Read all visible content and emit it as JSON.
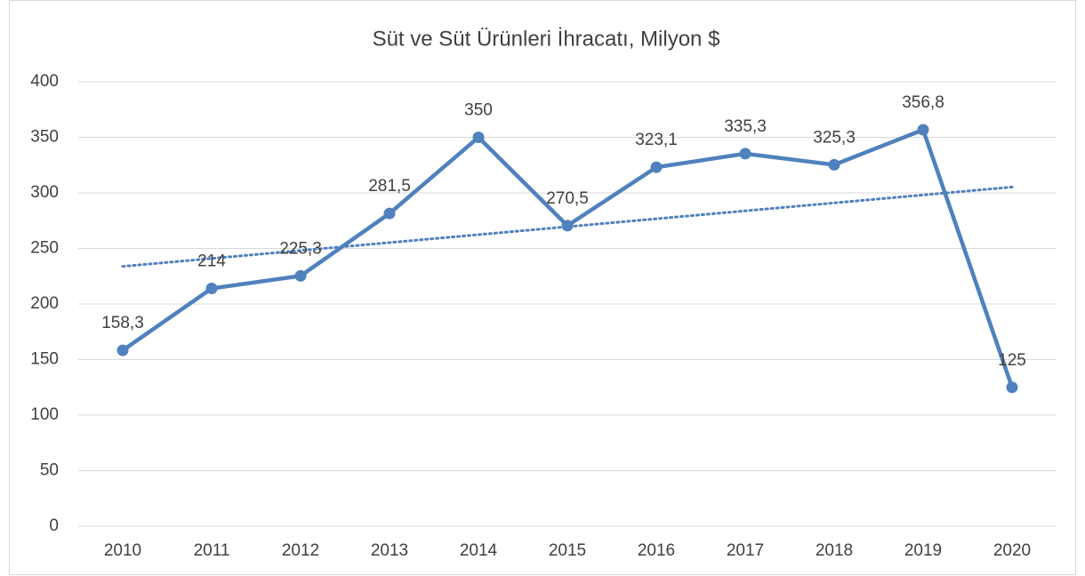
{
  "chart_data": {
    "type": "line",
    "title": "Süt ve Süt Ürünleri İhracatı, Milyon $",
    "categories": [
      "2010",
      "2011",
      "2012",
      "2013",
      "2014",
      "2015",
      "2016",
      "2017",
      "2018",
      "2019",
      "2020"
    ],
    "values": [
      158.3,
      214,
      225.3,
      281.5,
      350,
      270.5,
      323.1,
      335.3,
      325.3,
      356.8,
      125
    ],
    "value_labels": [
      "158,3",
      "214",
      "225,3",
      "281,5",
      "350",
      "270,5",
      "323,1",
      "335,3",
      "325,3",
      "356,8",
      "125"
    ],
    "color": "#4f81bd",
    "ylim": [
      0,
      400
    ],
    "yticks": [
      0,
      50,
      100,
      150,
      200,
      250,
      300,
      350,
      400
    ],
    "grid": true,
    "trendline": "linear"
  }
}
